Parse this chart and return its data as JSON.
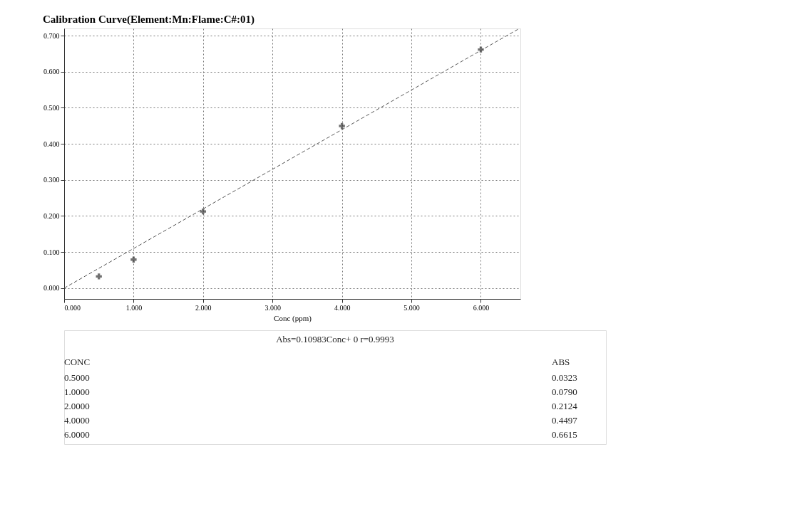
{
  "chart_data": {
    "type": "scatter",
    "title": "Calibration Curve(Element:Mn:Flame:C#:01)",
    "xlabel": "Conc (ppm)",
    "x": [
      0.5,
      1.0,
      2.0,
      4.0,
      6.0
    ],
    "series": [
      {
        "color": "#333333",
        "values": [
          0.0323,
          0.079,
          0.2124,
          0.4497,
          0.6615
        ],
        "marker": "cross"
      },
      {
        "type": "line",
        "color": "#555555",
        "x": [
          0,
          6.55
        ],
        "values": [
          0,
          0.7194
        ],
        "line_style": "dashed"
      }
    ],
    "annotations": [
      "Abs=0.10983Conc+   0      r=0.9993",
      "CONC",
      "0.5000",
      "1.0000",
      "2.0000",
      "4.0000",
      "6.0000",
      "ABS",
      "0.0323",
      "0.0790",
      "0.2124",
      "0.4497",
      "0.6615"
    ],
    "xlim": [
      0,
      6.57
    ],
    "ylim": [
      -0.03,
      0.72
    ],
    "xticks": [
      {
        "value": 0,
        "label": "0.000"
      },
      {
        "value": 1,
        "label": "1.000"
      },
      {
        "value": 2,
        "label": "2.000"
      },
      {
        "value": 3,
        "label": "3.000"
      },
      {
        "value": 4,
        "label": "4.000"
      },
      {
        "value": 5,
        "label": "5.000"
      },
      {
        "value": 6,
        "label": "6.000"
      }
    ],
    "yticks": [
      {
        "value": 0,
        "label": "0.000"
      },
      {
        "value": 0.1,
        "label": "0.100"
      },
      {
        "value": 0.2,
        "label": "0.200"
      },
      {
        "value": 0.3,
        "label": "0.300"
      },
      {
        "value": 0.4,
        "label": "0.400"
      },
      {
        "value": 0.5,
        "label": "0.500"
      },
      {
        "value": 0.6,
        "label": "0.600"
      },
      {
        "value": 0.7,
        "label": "0.700"
      }
    ],
    "grid": true
  }
}
